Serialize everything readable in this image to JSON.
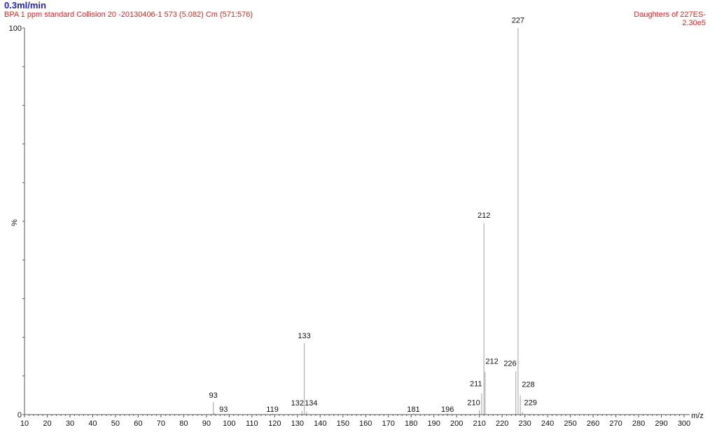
{
  "header": {
    "title": "0.3ml/min",
    "subtitle": "BPA 1 ppm standard Collision 20 -20130406-1 573 (5.082) Cm (571:576)",
    "right_line1": "Daughters of 227ES-",
    "right_line2": "2.30e5"
  },
  "colors": {
    "title": "#2222cc",
    "subtitle": "#e8231f",
    "axis": "#555555",
    "peak": "#b0b0b0"
  },
  "chart_data": {
    "type": "bar",
    "title": "",
    "xlabel": "m/z",
    "ylabel": "%",
    "xlim": [
      10,
      300
    ],
    "ylim": [
      0,
      100
    ],
    "x_ticks": [
      10,
      20,
      30,
      40,
      50,
      60,
      70,
      80,
      90,
      100,
      110,
      120,
      130,
      140,
      150,
      160,
      170,
      180,
      190,
      200,
      210,
      220,
      230,
      240,
      250,
      260,
      270,
      280,
      290,
      300
    ],
    "y_ticks": [
      0,
      100
    ],
    "peaks": [
      {
        "mz": 93.0,
        "intensity": 3.2
      },
      {
        "mz": 93.5,
        "intensity": 0.4
      },
      {
        "mz": 119.0,
        "intensity": 0.3
      },
      {
        "mz": 132.0,
        "intensity": 0.9
      },
      {
        "mz": 133.0,
        "intensity": 18.5
      },
      {
        "mz": 134.0,
        "intensity": 0.8
      },
      {
        "mz": 181.0,
        "intensity": 0.3
      },
      {
        "mz": 196.0,
        "intensity": 0.3
      },
      {
        "mz": 210.0,
        "intensity": 1.2
      },
      {
        "mz": 211.0,
        "intensity": 5.5
      },
      {
        "mz": 212.0,
        "intensity": 49.5
      },
      {
        "mz": 212.5,
        "intensity": 11.0
      },
      {
        "mz": 226.0,
        "intensity": 11.2
      },
      {
        "mz": 227.0,
        "intensity": 100.0
      },
      {
        "mz": 228.0,
        "intensity": 5.0
      },
      {
        "mz": 229.0,
        "intensity": 0.7
      }
    ],
    "peak_labels": [
      {
        "text": "93",
        "mz": 93.0,
        "intensity": 4.0
      },
      {
        "text": "93",
        "mz": 97.5,
        "intensity": 0.4
      },
      {
        "text": "119",
        "mz": 119.0,
        "intensity": 0.4
      },
      {
        "text": "132",
        "mz": 130.0,
        "intensity": 2.0
      },
      {
        "text": "134",
        "mz": 136.0,
        "intensity": 2.0
      },
      {
        "text": "133",
        "mz": 133.0,
        "intensity": 19.4
      },
      {
        "text": "181",
        "mz": 181.0,
        "intensity": 0.4
      },
      {
        "text": "196",
        "mz": 196.0,
        "intensity": 0.4
      },
      {
        "text": "210",
        "mz": 207.5,
        "intensity": 2.1
      },
      {
        "text": "211",
        "mz": 208.5,
        "intensity": 7.0
      },
      {
        "text": "212",
        "mz": 215.5,
        "intensity": 12.8
      },
      {
        "text": "212",
        "mz": 212.0,
        "intensity": 50.5
      },
      {
        "text": "226",
        "mz": 223.5,
        "intensity": 12.2
      },
      {
        "text": "227",
        "mz": 227.0,
        "intensity": 101.0
      },
      {
        "text": "228",
        "mz": 231.5,
        "intensity": 6.8
      },
      {
        "text": "229",
        "mz": 232.5,
        "intensity": 2.1
      }
    ]
  }
}
